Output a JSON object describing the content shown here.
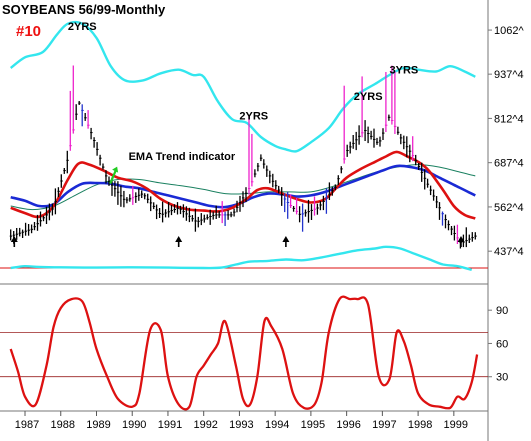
{
  "chart_data": {
    "type": "line",
    "title": "SOYBEANS 56/99-Monthly",
    "chart_number": "#10",
    "price_panel": {
      "ylabels": [
        "1062^",
        "937^4",
        "812^4",
        "687^4",
        "562^4",
        "437^4"
      ],
      "yvalues": [
        1062,
        937.5,
        812.5,
        687.5,
        562.5,
        437.5
      ],
      "ylim": [
        390,
        1130
      ],
      "series": [
        {
          "name": "price_close",
          "role": "price",
          "color": "#000000",
          "values": [
            [
              1986.6,
              480
            ],
            [
              1987.2,
              500
            ],
            [
              1987.8,
              560
            ],
            [
              1988.2,
              700
            ],
            [
              1988.5,
              860
            ],
            [
              1988.9,
              760
            ],
            [
              1989.3,
              640
            ],
            [
              1989.8,
              580
            ],
            [
              1990.3,
              600
            ],
            [
              1990.8,
              540
            ],
            [
              1991.3,
              560
            ],
            [
              1991.8,
              520
            ],
            [
              1992.3,
              540
            ],
            [
              1992.8,
              540
            ],
            [
              1993.3,
              620
            ],
            [
              1993.6,
              700
            ],
            [
              1993.9,
              640
            ],
            [
              1994.3,
              580
            ],
            [
              1994.7,
              540
            ],
            [
              1995.2,
              560
            ],
            [
              1995.7,
              620
            ],
            [
              1996.0,
              720
            ],
            [
              1996.5,
              780
            ],
            [
              1996.9,
              740
            ],
            [
              1997.2,
              820
            ],
            [
              1997.5,
              760
            ],
            [
              1997.9,
              700
            ],
            [
              1998.3,
              620
            ],
            [
              1998.8,
              520
            ],
            [
              1999.2,
              460
            ],
            [
              1999.6,
              480
            ]
          ]
        },
        {
          "name": "upper_band",
          "role": "envelope",
          "color": "#33e6ee",
          "values": [
            [
              1986.6,
              955
            ],
            [
              1987.0,
              985
            ],
            [
              1987.5,
              1000
            ],
            [
              1987.9,
              1050
            ],
            [
              1988.2,
              1080
            ],
            [
              1988.6,
              1080
            ],
            [
              1989.0,
              1040
            ],
            [
              1989.4,
              960
            ],
            [
              1989.8,
              920
            ],
            [
              1990.3,
              920
            ],
            [
              1990.8,
              940
            ],
            [
              1991.3,
              950
            ],
            [
              1991.7,
              935
            ],
            [
              1992.0,
              930
            ],
            [
              1992.4,
              860
            ],
            [
              1992.8,
              810
            ],
            [
              1993.2,
              800
            ],
            [
              1993.6,
              760
            ],
            [
              1994.0,
              735
            ],
            [
              1994.3,
              725
            ],
            [
              1994.6,
              720
            ],
            [
              1995.0,
              745
            ],
            [
              1995.5,
              785
            ],
            [
              1995.9,
              840
            ],
            [
              1996.3,
              880
            ],
            [
              1996.8,
              910
            ],
            [
              1997.2,
              935
            ],
            [
              1997.6,
              955
            ],
            [
              1998.0,
              950
            ],
            [
              1998.5,
              945
            ],
            [
              1998.9,
              960
            ],
            [
              1999.3,
              945
            ],
            [
              1999.6,
              930
            ]
          ]
        },
        {
          "name": "lower_band",
          "role": "envelope",
          "color": "#33e6ee",
          "values": [
            [
              1986.6,
              390
            ],
            [
              1987.0,
              395
            ],
            [
              1987.4,
              393
            ],
            [
              1988.0,
              392
            ],
            [
              1989.0,
              391
            ],
            [
              1990.0,
              392
            ],
            [
              1991.0,
              391
            ],
            [
              1992.0,
              390
            ],
            [
              1992.5,
              391
            ],
            [
              1992.9,
              400
            ],
            [
              1993.3,
              408
            ],
            [
              1993.8,
              410
            ],
            [
              1994.3,
              414
            ],
            [
              1994.8,
              412
            ],
            [
              1995.3,
              420
            ],
            [
              1995.8,
              430
            ],
            [
              1996.3,
              440
            ],
            [
              1996.8,
              445
            ],
            [
              1997.1,
              450
            ],
            [
              1997.5,
              445
            ],
            [
              1997.9,
              430
            ],
            [
              1998.3,
              415
            ],
            [
              1998.7,
              400
            ],
            [
              1999.1,
              395
            ],
            [
              1999.5,
              385
            ]
          ]
        },
        {
          "name": "ema_fast",
          "role": "ema",
          "color": "#dd1111",
          "values": [
            [
              1986.6,
              560
            ],
            [
              1987.0,
              545
            ],
            [
              1987.4,
              535
            ],
            [
              1987.8,
              565
            ],
            [
              1988.2,
              640
            ],
            [
              1988.5,
              685
            ],
            [
              1988.8,
              682
            ],
            [
              1989.2,
              665
            ],
            [
              1989.6,
              645
            ],
            [
              1990.0,
              635
            ],
            [
              1990.4,
              615
            ],
            [
              1990.8,
              585
            ],
            [
              1991.2,
              565
            ],
            [
              1991.6,
              555
            ],
            [
              1992.0,
              552
            ],
            [
              1992.4,
              550
            ],
            [
              1992.8,
              560
            ],
            [
              1993.2,
              585
            ],
            [
              1993.5,
              610
            ],
            [
              1993.8,
              615
            ],
            [
              1994.2,
              600
            ],
            [
              1994.6,
              585
            ],
            [
              1995.0,
              575
            ],
            [
              1995.4,
              585
            ],
            [
              1995.7,
              615
            ],
            [
              1996.0,
              645
            ],
            [
              1996.4,
              670
            ],
            [
              1996.8,
              690
            ],
            [
              1997.1,
              705
            ],
            [
              1997.4,
              718
            ],
            [
              1997.7,
              705
            ],
            [
              1998.0,
              690
            ],
            [
              1998.3,
              665
            ],
            [
              1998.7,
              610
            ],
            [
              1999.0,
              565
            ],
            [
              1999.3,
              540
            ],
            [
              1999.6,
              530
            ]
          ]
        },
        {
          "name": "ema_slow",
          "role": "ema",
          "color": "#1a2ad4",
          "values": [
            [
              1986.6,
              590
            ],
            [
              1987.0,
              580
            ],
            [
              1987.4,
              565
            ],
            [
              1987.8,
              570
            ],
            [
              1988.2,
              605
            ],
            [
              1988.6,
              628
            ],
            [
              1989.0,
              630
            ],
            [
              1989.4,
              628
            ],
            [
              1989.8,
              620
            ],
            [
              1990.2,
              615
            ],
            [
              1990.6,
              605
            ],
            [
              1991.0,
              595
            ],
            [
              1991.4,
              585
            ],
            [
              1991.8,
              575
            ],
            [
              1992.2,
              565
            ],
            [
              1992.6,
              562
            ],
            [
              1993.0,
              572
            ],
            [
              1993.4,
              590
            ],
            [
              1993.8,
              600
            ],
            [
              1994.2,
              598
            ],
            [
              1994.6,
              592
            ],
            [
              1995.0,
              595
            ],
            [
              1995.4,
              605
            ],
            [
              1995.8,
              620
            ],
            [
              1996.2,
              635
            ],
            [
              1996.6,
              650
            ],
            [
              1997.0,
              665
            ],
            [
              1997.4,
              678
            ],
            [
              1997.8,
              675
            ],
            [
              1998.2,
              665
            ],
            [
              1998.6,
              645
            ],
            [
              1999.0,
              625
            ],
            [
              1999.4,
              605
            ],
            [
              1999.6,
              595
            ]
          ]
        },
        {
          "name": "long_ma",
          "role": "ma",
          "color": "#1a8060",
          "values": [
            [
              1986.6,
              565
            ],
            [
              1987.2,
              555
            ],
            [
              1987.8,
              565
            ],
            [
              1988.4,
              595
            ],
            [
              1989.0,
              625
            ],
            [
              1989.6,
              640
            ],
            [
              1990.2,
              640
            ],
            [
              1990.8,
              630
            ],
            [
              1991.4,
              622
            ],
            [
              1992.0,
              612
            ],
            [
              1992.6,
              600
            ],
            [
              1993.2,
              600
            ],
            [
              1993.8,
              605
            ],
            [
              1994.4,
              605
            ],
            [
              1995.0,
              605
            ],
            [
              1995.6,
              620
            ],
            [
              1996.2,
              640
            ],
            [
              1996.8,
              660
            ],
            [
              1997.4,
              675
            ],
            [
              1998.0,
              682
            ],
            [
              1998.6,
              675
            ],
            [
              1999.2,
              660
            ],
            [
              1999.6,
              650
            ]
          ]
        }
      ],
      "annotations": [
        {
          "text": "2YRS",
          "x": 1988.2,
          "y": 1062
        },
        {
          "text": "2YRS",
          "x": 1993.0,
          "y": 810
        },
        {
          "text": "2YRS",
          "x": 1996.2,
          "y": 865
        },
        {
          "text": "3YRS",
          "x": 1997.2,
          "y": 940
        },
        {
          "text": "EMA Trend indicator",
          "x": 1989.9,
          "y": 695
        }
      ],
      "arrows_up": [
        1986.7,
        1991.3,
        1994.3,
        1999.2
      ]
    },
    "oscillator_panel": {
      "ylabels": [
        "90",
        "60",
        "30"
      ],
      "yvalues": [
        90,
        60,
        30
      ],
      "ylim": [
        0,
        110
      ],
      "reference_lines": [
        70,
        30
      ],
      "series": [
        {
          "name": "oscillator",
          "color": "#dd1111",
          "values": [
            [
              1986.6,
              55
            ],
            [
              1986.8,
              35
            ],
            [
              1987.0,
              12
            ],
            [
              1987.3,
              5
            ],
            [
              1987.6,
              40
            ],
            [
              1987.8,
              75
            ],
            [
              1988.0,
              92
            ],
            [
              1988.3,
              100
            ],
            [
              1988.6,
              98
            ],
            [
              1988.8,
              80
            ],
            [
              1989.0,
              55
            ],
            [
              1989.3,
              30
            ],
            [
              1989.6,
              10
            ],
            [
              1990.0,
              3
            ],
            [
              1990.2,
              15
            ],
            [
              1990.5,
              72
            ],
            [
              1990.8,
              72
            ],
            [
              1991.0,
              30
            ],
            [
              1991.3,
              5
            ],
            [
              1991.6,
              3
            ],
            [
              1991.8,
              30
            ],
            [
              1992.0,
              40
            ],
            [
              1992.2,
              50
            ],
            [
              1992.4,
              60
            ],
            [
              1992.6,
              80
            ],
            [
              1992.9,
              40
            ],
            [
              1993.1,
              10
            ],
            [
              1993.3,
              5
            ],
            [
              1993.5,
              30
            ],
            [
              1993.7,
              80
            ],
            [
              1993.9,
              75
            ],
            [
              1994.2,
              55
            ],
            [
              1994.5,
              15
            ],
            [
              1994.8,
              2
            ],
            [
              1995.1,
              5
            ],
            [
              1995.3,
              25
            ],
            [
              1995.5,
              70
            ],
            [
              1995.8,
              100
            ],
            [
              1996.1,
              100
            ],
            [
              1996.3,
              100
            ],
            [
              1996.6,
              95
            ],
            [
              1996.9,
              30
            ],
            [
              1997.2,
              28
            ],
            [
              1997.4,
              70
            ],
            [
              1997.6,
              62
            ],
            [
              1997.8,
              40
            ],
            [
              1998.0,
              15
            ],
            [
              1998.3,
              5
            ],
            [
              1998.6,
              3
            ],
            [
              1998.9,
              2
            ],
            [
              1999.1,
              12
            ],
            [
              1999.3,
              10
            ],
            [
              1999.5,
              25
            ],
            [
              1999.65,
              50
            ]
          ]
        }
      ]
    },
    "x_axis": {
      "labels": [
        "1987",
        "1988",
        "1989",
        "1990",
        "1991",
        "1992",
        "1993",
        "1994",
        "1995",
        "1996",
        "1997",
        "1998",
        "1999"
      ],
      "values": [
        1987,
        1988,
        1989,
        1990,
        1991,
        1992,
        1993,
        1994,
        1995,
        1996,
        1997,
        1998,
        1999
      ],
      "xlim": [
        1986.3,
        1999.9
      ]
    },
    "colors": {
      "price_up": "#000000",
      "spike_up": "#ee22cc",
      "spike_down": "#2233cc",
      "chart_number": "#ee1111",
      "arrow_green": "#22cc22"
    },
    "grid": false
  }
}
